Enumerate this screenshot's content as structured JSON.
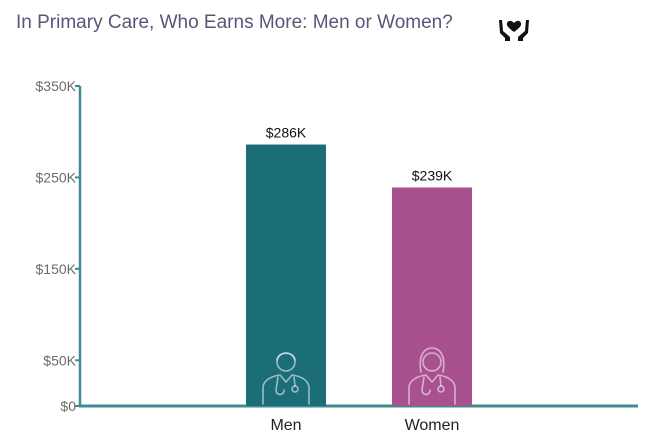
{
  "chart_data": {
    "type": "bar",
    "title": "In Primary Care, Who Earns More: Men or Women?",
    "title_icon": "hands-holding-heart-icon",
    "categories": [
      "Men",
      "Women"
    ],
    "values": [
      286,
      239
    ],
    "value_labels": [
      "$286K",
      "$239K"
    ],
    "bar_colors": [
      "#1b6e78",
      "#a9518f"
    ],
    "bar_icons": [
      "male-doctor-icon",
      "female-doctor-icon"
    ],
    "axis_color": "#3e8b93",
    "ylim": [
      0,
      350
    ],
    "yticks": [
      0,
      50,
      150,
      250,
      350
    ],
    "ytick_labels": [
      "$0",
      "$50K",
      "$150K",
      "$250K",
      "$350K"
    ],
    "xlabel": "",
    "ylabel": "",
    "grid": false,
    "legend": "none"
  }
}
